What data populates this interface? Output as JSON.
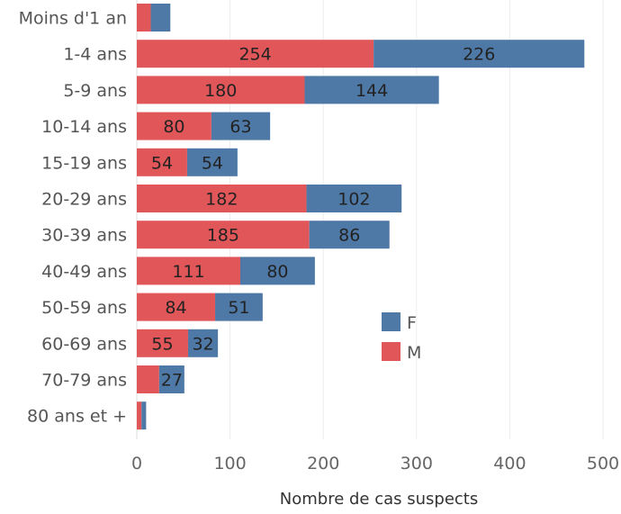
{
  "chart_data": {
    "type": "bar",
    "orientation": "horizontal",
    "stacked": true,
    "categories": [
      "Moins d'1 an",
      "1-4 ans",
      "5-9 ans",
      "10-14 ans",
      "15-19 ans",
      "20-29 ans",
      "30-39 ans",
      "40-49 ans",
      "50-59 ans",
      "60-69 ans",
      "70-79 ans",
      "80 ans et +"
    ],
    "series": [
      {
        "name": "M",
        "color": "#e15759",
        "values": [
          15,
          254,
          180,
          80,
          54,
          182,
          185,
          111,
          84,
          55,
          24,
          5
        ],
        "labels": [
          "",
          "254",
          "180",
          "80",
          "54",
          "182",
          "185",
          "111",
          "84",
          "55",
          "",
          ""
        ]
      },
      {
        "name": "F",
        "color": "#4e79a7",
        "values": [
          21,
          226,
          144,
          63,
          54,
          102,
          86,
          80,
          51,
          32,
          27,
          5
        ],
        "labels": [
          "",
          "226",
          "144",
          "63",
          "54",
          "102",
          "86",
          "80",
          "51",
          "32",
          "27",
          ""
        ]
      }
    ],
    "xlabel": "Nombre de cas suspects",
    "ylabel": "",
    "xlim": [
      0,
      500
    ],
    "xticks": [
      0,
      100,
      200,
      300,
      400,
      500
    ],
    "grid": "vertical",
    "legend": "center-right"
  }
}
